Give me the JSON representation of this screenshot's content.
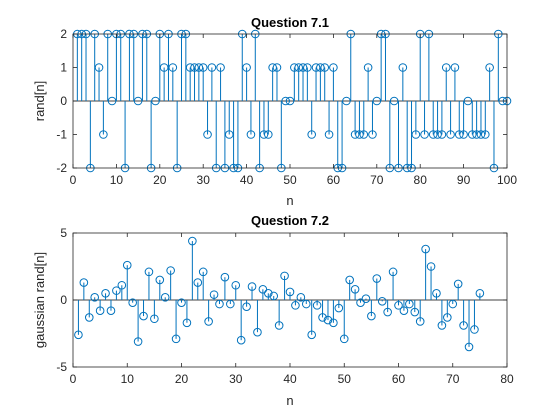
{
  "colors": {
    "stem": "#0072bd",
    "axis": "#262626",
    "baseline": "#000000",
    "background": "#ffffff"
  },
  "chart_data": [
    {
      "type": "stem",
      "title": "Question 7.1",
      "xlabel": "n",
      "ylabel": "rand[n]",
      "xlim": [
        0,
        100
      ],
      "ylim": [
        -2,
        2
      ],
      "xticks": [
        0,
        10,
        20,
        30,
        40,
        50,
        60,
        70,
        80,
        90,
        100
      ],
      "yticks": [
        -2,
        -1,
        0,
        1,
        2
      ],
      "grid": false,
      "marker": "circle-open",
      "x": [
        1,
        2,
        3,
        4,
        5,
        6,
        7,
        8,
        9,
        10,
        11,
        12,
        13,
        14,
        15,
        16,
        17,
        18,
        19,
        20,
        21,
        22,
        23,
        24,
        25,
        26,
        27,
        28,
        29,
        30,
        31,
        32,
        33,
        34,
        35,
        36,
        37,
        38,
        39,
        40,
        41,
        42,
        43,
        44,
        45,
        46,
        47,
        48,
        49,
        50,
        51,
        52,
        53,
        54,
        55,
        56,
        57,
        58,
        59,
        60,
        61,
        62,
        63,
        64,
        65,
        66,
        67,
        68,
        69,
        70,
        71,
        72,
        73,
        74,
        75,
        76,
        77,
        78,
        79,
        80,
        81,
        82,
        83,
        84,
        85,
        86,
        87,
        88,
        89,
        90,
        91,
        92,
        93,
        94,
        95,
        96,
        97,
        98,
        99,
        100
      ],
      "values": [
        2,
        2,
        2,
        -2,
        2,
        1,
        -1,
        2,
        0,
        2,
        2,
        -2,
        2,
        2,
        0,
        2,
        2,
        -2,
        0,
        2,
        1,
        2,
        1,
        -2,
        2,
        2,
        1,
        1,
        1,
        1,
        -1,
        1,
        -2,
        1,
        -2,
        -1,
        -2,
        -2,
        2,
        1,
        -1,
        2,
        -2,
        -1,
        -1,
        1,
        1,
        -2,
        0,
        0,
        1,
        1,
        1,
        1,
        -1,
        1,
        1,
        1,
        -1,
        1,
        -2,
        -2,
        0,
        2,
        -1,
        -1,
        -1,
        1,
        -1,
        0,
        2,
        2,
        -2,
        0,
        -2,
        1,
        -2,
        -2,
        -1,
        2,
        -1,
        2,
        -1,
        -1,
        -1,
        1,
        -1,
        1,
        -1,
        -1,
        0,
        -1,
        -1,
        -1,
        -1,
        1,
        -2,
        2,
        0,
        0
      ],
      "values_note": ""
    },
    {
      "type": "stem",
      "title": "Question 7.2",
      "xlabel": "n",
      "ylabel": "gaussian rand[n]",
      "xlim": [
        0,
        80
      ],
      "ylim": [
        -5,
        5
      ],
      "xticks": [
        0,
        10,
        20,
        30,
        40,
        50,
        60,
        70,
        80
      ],
      "yticks": [
        -5,
        0,
        5
      ],
      "grid": false,
      "marker": "circle-open",
      "x": [
        1,
        2,
        3,
        4,
        5,
        6,
        7,
        8,
        9,
        10,
        11,
        12,
        13,
        14,
        15,
        16,
        17,
        18,
        19,
        20,
        21,
        22,
        23,
        24,
        25,
        26,
        27,
        28,
        29,
        30,
        31,
        32,
        33,
        34,
        35,
        36,
        37,
        38,
        39,
        40,
        41,
        42,
        43,
        44,
        45,
        46,
        47,
        48,
        49,
        50,
        51,
        52,
        53,
        54,
        55,
        56,
        57,
        58,
        59,
        60,
        61,
        62,
        63,
        64,
        65,
        66,
        67,
        68,
        69,
        70,
        71,
        72,
        73,
        74,
        75
      ],
      "values": [
        -2.6,
        1.3,
        -1.3,
        0.2,
        -0.8,
        0.5,
        -0.8,
        0.7,
        1.1,
        2.6,
        -0.2,
        -3.1,
        -1.2,
        2.1,
        -1.4,
        1.5,
        0.2,
        2.2,
        -2.9,
        -0.2,
        -1.7,
        4.4,
        1.3,
        2.1,
        -1.6,
        0.4,
        -0.3,
        1.7,
        -0.3,
        1.1,
        -3.0,
        -0.5,
        1.0,
        -2.4,
        0.8,
        0.5,
        0.3,
        -1.9,
        1.8,
        0.6,
        -0.4,
        0.2,
        -0.3,
        -2.6,
        -0.4,
        -1.3,
        -1.5,
        -1.7,
        -0.6,
        -2.9,
        1.5,
        0.8,
        -0.2,
        0.1,
        -1.2,
        1.6,
        -0.1,
        -0.9,
        2.1,
        -0.4,
        -0.8,
        -0.3,
        -0.9,
        -1.6,
        3.8,
        2.5,
        0.5,
        -1.9,
        -1.3,
        -0.3,
        1.2,
        -1.9,
        -3.5,
        -2.2,
        0.5
      ]
    }
  ]
}
